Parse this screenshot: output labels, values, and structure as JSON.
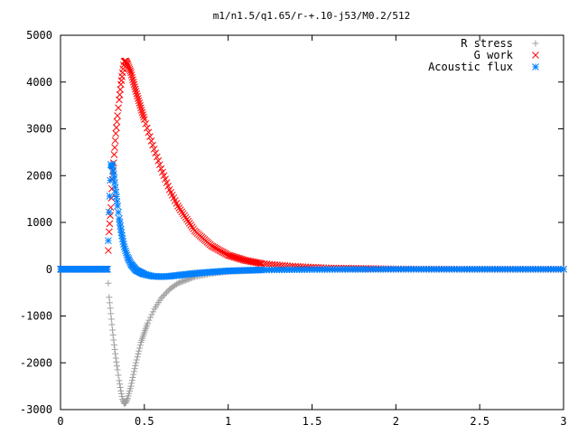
{
  "chart_data": {
    "type": "scatter",
    "title": "m1/n1.5/q1.65/r-+.10-j53/M0.2/512",
    "xlabel": "",
    "ylabel": "",
    "xlim": [
      0,
      3
    ],
    "ylim": [
      -3000,
      5000
    ],
    "x_ticks": [
      "0",
      "0.5",
      "1",
      "1.5",
      "2",
      "2.5",
      "3"
    ],
    "y_ticks": [
      "5000",
      "4000",
      "3000",
      "2000",
      "1000",
      "0",
      "-1000",
      "-2000",
      "-3000"
    ],
    "x_tick_values": [
      0,
      0.5,
      1,
      1.5,
      2,
      2.5,
      3
    ],
    "y_tick_values": [
      5000,
      4000,
      3000,
      2000,
      1000,
      0,
      -1000,
      -2000,
      -3000
    ],
    "grid": false,
    "legend_position": "top-right",
    "series": [
      {
        "name": "R stress",
        "marker": "plus",
        "color": "#a0a0a0",
        "points": [
          [
            0,
            0
          ],
          [
            0.28,
            0
          ],
          [
            0.29,
            -600
          ],
          [
            0.3,
            -950
          ],
          [
            0.31,
            -1300
          ],
          [
            0.32,
            -1620
          ],
          [
            0.33,
            -1900
          ],
          [
            0.34,
            -2150
          ],
          [
            0.35,
            -2380
          ],
          [
            0.36,
            -2600
          ],
          [
            0.37,
            -2780
          ],
          [
            0.38,
            -2870
          ],
          [
            0.39,
            -2850
          ],
          [
            0.4,
            -2760
          ],
          [
            0.42,
            -2500
          ],
          [
            0.45,
            -2000
          ],
          [
            0.48,
            -1560
          ],
          [
            0.52,
            -1150
          ],
          [
            0.56,
            -850
          ],
          [
            0.6,
            -620
          ],
          [
            0.65,
            -430
          ],
          [
            0.7,
            -300
          ],
          [
            0.8,
            -160
          ],
          [
            0.9,
            -90
          ],
          [
            1.0,
            -50
          ],
          [
            1.2,
            -20
          ],
          [
            1.5,
            -5
          ],
          [
            2.0,
            0
          ],
          [
            2.5,
            0
          ],
          [
            3.0,
            0
          ]
        ]
      },
      {
        "name": "G work",
        "marker": "cross",
        "color": "#ff0000",
        "points": [
          [
            0,
            0
          ],
          [
            0.28,
            0
          ],
          [
            0.29,
            800
          ],
          [
            0.3,
            1320
          ],
          [
            0.31,
            1920
          ],
          [
            0.32,
            2450
          ],
          [
            0.33,
            2900
          ],
          [
            0.34,
            3280
          ],
          [
            0.35,
            3620
          ],
          [
            0.36,
            3950
          ],
          [
            0.37,
            4200
          ],
          [
            0.38,
            4440
          ],
          [
            0.39,
            4450
          ],
          [
            0.4,
            4380
          ],
          [
            0.42,
            4200
          ],
          [
            0.45,
            3800
          ],
          [
            0.5,
            3200
          ],
          [
            0.55,
            2650
          ],
          [
            0.6,
            2150
          ],
          [
            0.65,
            1700
          ],
          [
            0.7,
            1350
          ],
          [
            0.8,
            820
          ],
          [
            0.9,
            500
          ],
          [
            1.0,
            300
          ],
          [
            1.1,
            190
          ],
          [
            1.2,
            120
          ],
          [
            1.4,
            60
          ],
          [
            1.6,
            25
          ],
          [
            2.0,
            5
          ],
          [
            2.5,
            0
          ],
          [
            3.0,
            0
          ]
        ]
      },
      {
        "name": "Acoustic flux",
        "marker": "star",
        "color": "#0080ff",
        "points": [
          [
            0,
            0
          ],
          [
            0.28,
            0
          ],
          [
            0.29,
            1220
          ],
          [
            0.3,
            2240
          ],
          [
            0.31,
            2200
          ],
          [
            0.32,
            1950
          ],
          [
            0.33,
            1650
          ],
          [
            0.34,
            1350
          ],
          [
            0.35,
            1080
          ],
          [
            0.36,
            850
          ],
          [
            0.37,
            650
          ],
          [
            0.38,
            480
          ],
          [
            0.4,
            260
          ],
          [
            0.42,
            110
          ],
          [
            0.45,
            -20
          ],
          [
            0.5,
            -110
          ],
          [
            0.55,
            -150
          ],
          [
            0.6,
            -160
          ],
          [
            0.65,
            -150
          ],
          [
            0.7,
            -130
          ],
          [
            0.8,
            -90
          ],
          [
            0.9,
            -60
          ],
          [
            1.0,
            -35
          ],
          [
            1.2,
            -15
          ],
          [
            1.5,
            -5
          ],
          [
            2.0,
            0
          ],
          [
            2.5,
            0
          ],
          [
            3.0,
            0
          ]
        ]
      }
    ]
  }
}
